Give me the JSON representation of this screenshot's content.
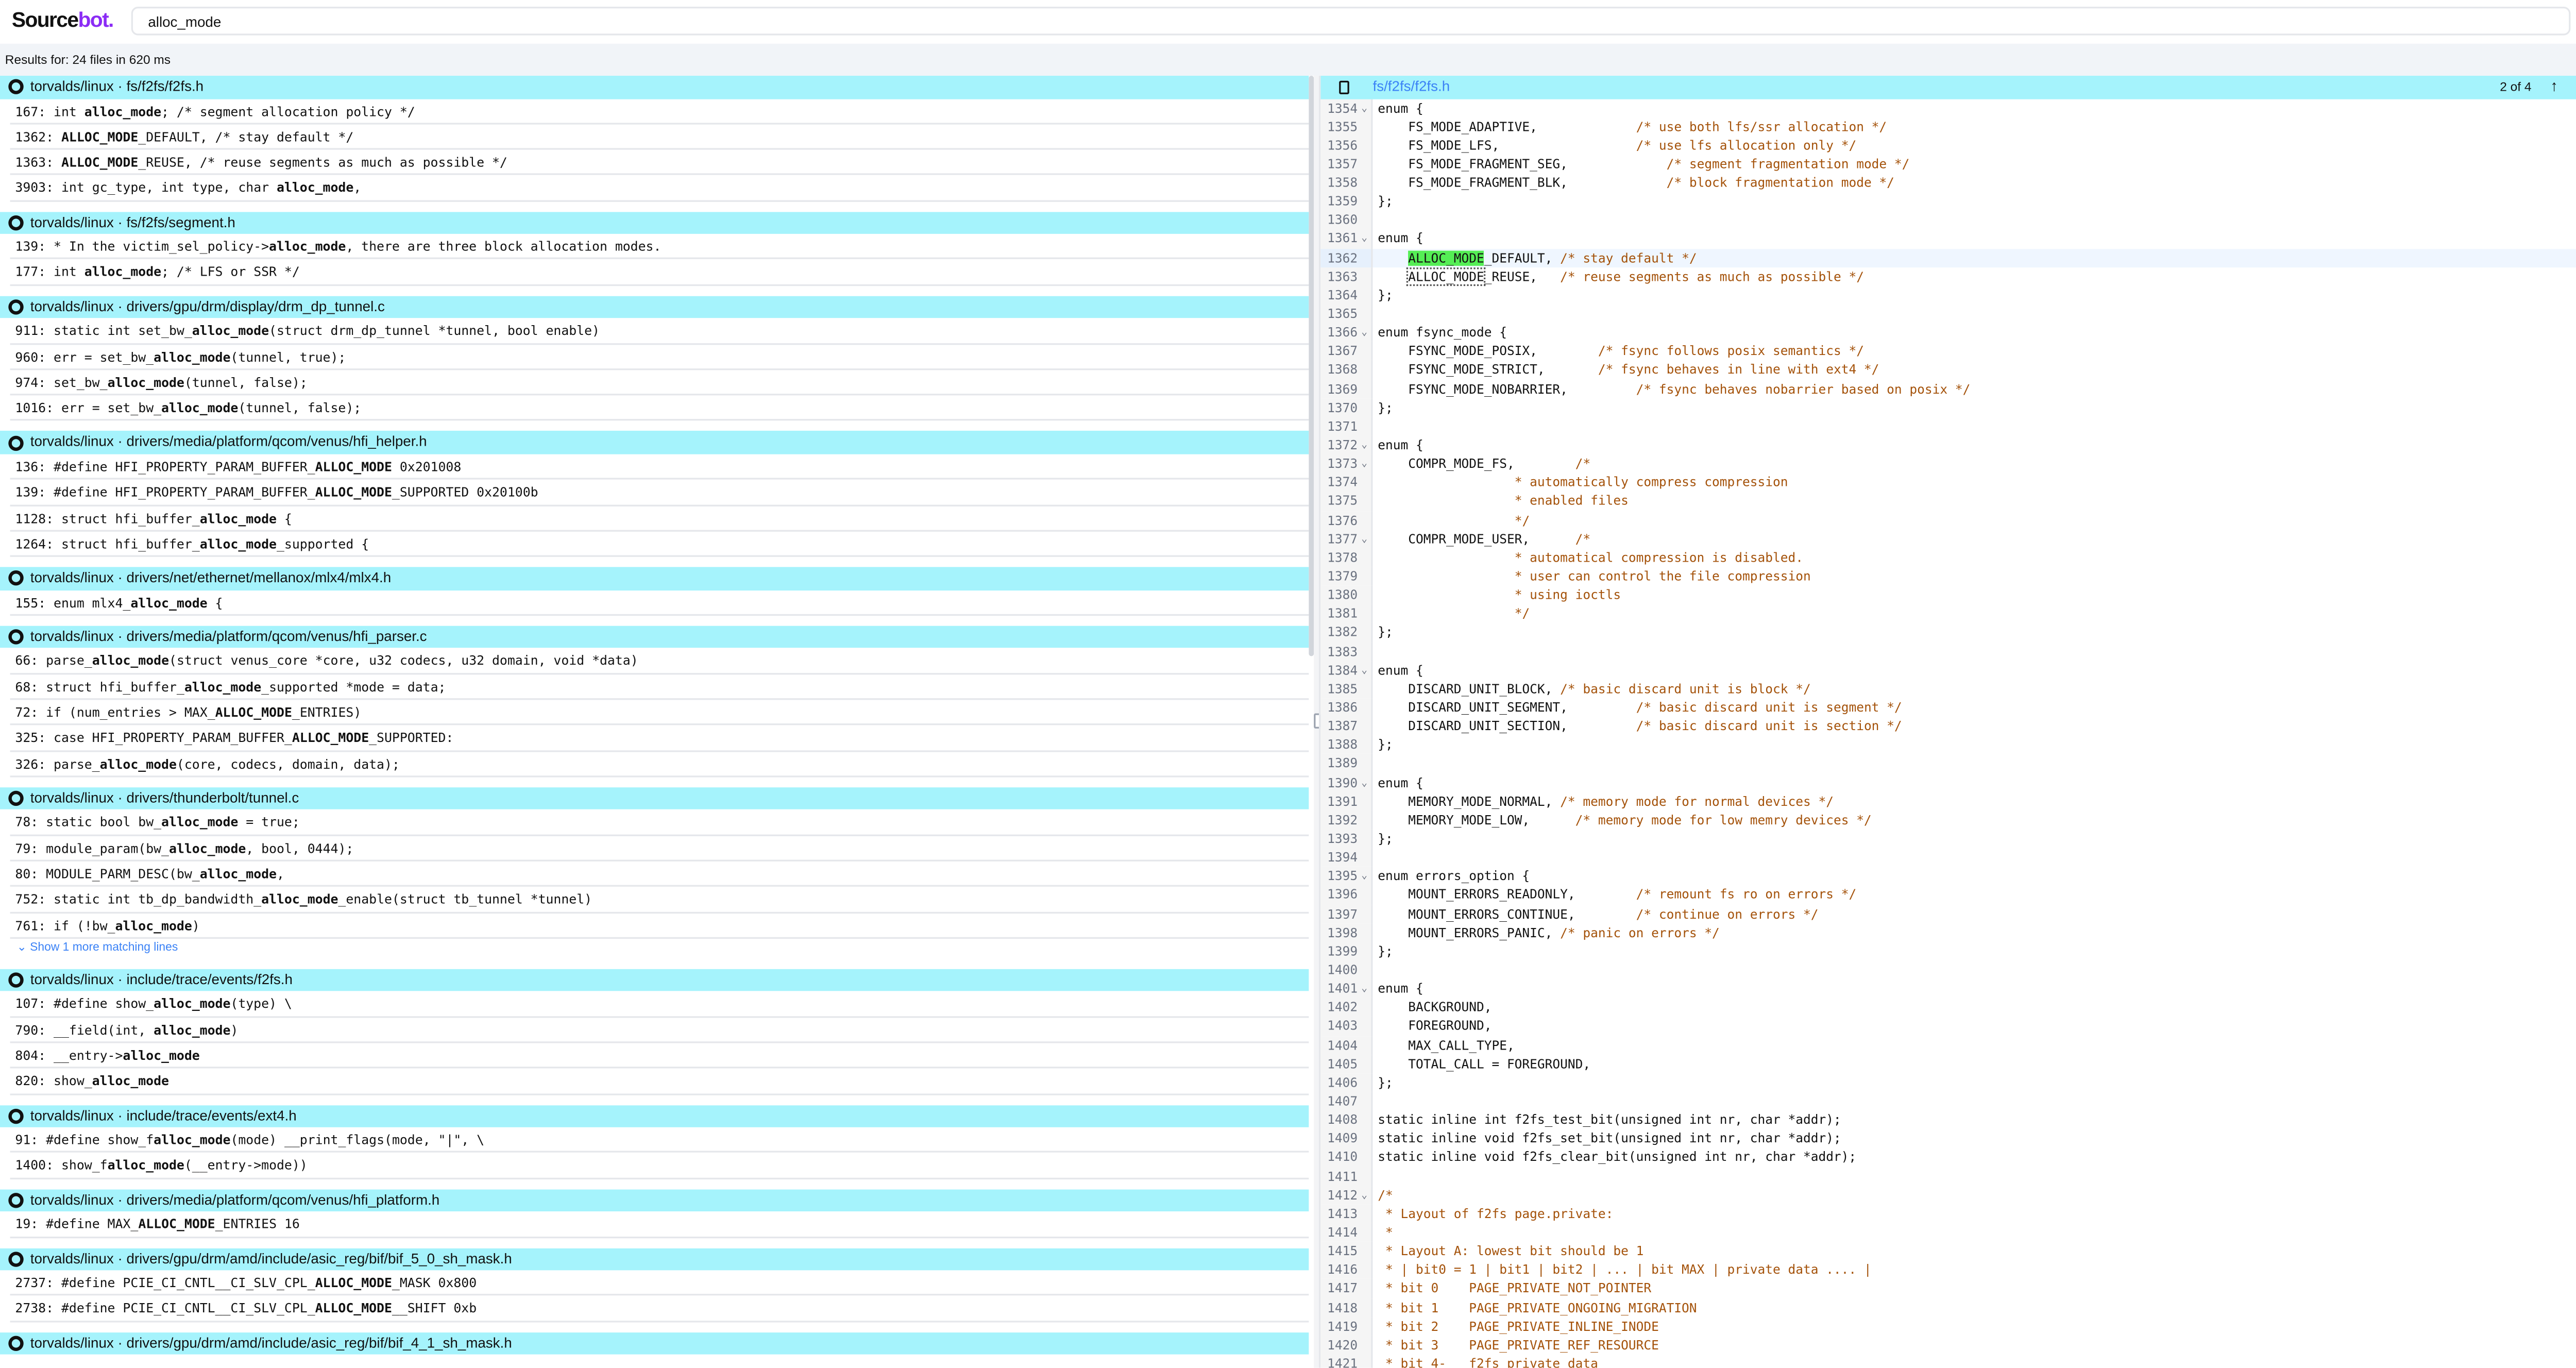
{
  "header": {
    "logo_a": "Source",
    "logo_b": "bot.",
    "search_value": "alloc_mode",
    "settings_icon": "gear-icon"
  },
  "results_summary": "Results for: 24 files in 620 ms",
  "colors": {
    "file_header": "#a5f3fc",
    "brand": "#8b2cf5",
    "match_highlight": "#55ee55",
    "comment": "#a4520a",
    "link": "#3b82f6"
  },
  "results": [
    {
      "repo": "torvalds/linux",
      "path": "fs/f2fs/f2fs.h",
      "lines": [
        {
          "n": "167",
          "pre": "int ",
          "match": "alloc_mode",
          "post": "; /* segment allocation policy */"
        },
        {
          "n": "1362",
          "pre": "",
          "match": "ALLOC_MODE",
          "post": "_DEFAULT, /* stay default */"
        },
        {
          "n": "1363",
          "pre": "",
          "match": "ALLOC_MODE",
          "post": "_REUSE, /* reuse segments as much as possible */"
        },
        {
          "n": "3903",
          "pre": "int gc_type, int type, char ",
          "match": "alloc_mode",
          "post": ","
        }
      ]
    },
    {
      "repo": "torvalds/linux",
      "path": "fs/f2fs/segment.h",
      "lines": [
        {
          "n": "139",
          "pre": "* In the victim_sel_policy->",
          "match": "alloc_mode",
          "post": ", there are three block allocation modes."
        },
        {
          "n": "177",
          "pre": "int ",
          "match": "alloc_mode",
          "post": "; /* LFS or SSR */"
        }
      ]
    },
    {
      "repo": "torvalds/linux",
      "path": "drivers/gpu/drm/display/drm_dp_tunnel.c",
      "lines": [
        {
          "n": "911",
          "pre": "static int set_bw_",
          "match": "alloc_mode",
          "post": "(struct drm_dp_tunnel *tunnel, bool enable)"
        },
        {
          "n": "960",
          "pre": "err = set_bw_",
          "match": "alloc_mode",
          "post": "(tunnel, true);"
        },
        {
          "n": "974",
          "pre": "set_bw_",
          "match": "alloc_mode",
          "post": "(tunnel, false);"
        },
        {
          "n": "1016",
          "pre": "err = set_bw_",
          "match": "alloc_mode",
          "post": "(tunnel, false);"
        }
      ]
    },
    {
      "repo": "torvalds/linux",
      "path": "drivers/media/platform/qcom/venus/hfi_helper.h",
      "lines": [
        {
          "n": "136",
          "pre": "#define HFI_PROPERTY_PARAM_BUFFER_",
          "match": "ALLOC_MODE",
          "post": " 0x201008"
        },
        {
          "n": "139",
          "pre": "#define HFI_PROPERTY_PARAM_BUFFER_",
          "match": "ALLOC_MODE",
          "post": "_SUPPORTED 0x20100b"
        },
        {
          "n": "1128",
          "pre": "struct hfi_buffer_",
          "match": "alloc_mode",
          "post": " {"
        },
        {
          "n": "1264",
          "pre": "struct hfi_buffer_",
          "match": "alloc_mode",
          "post": "_supported {"
        }
      ]
    },
    {
      "repo": "torvalds/linux",
      "path": "drivers/net/ethernet/mellanox/mlx4/mlx4.h",
      "lines": [
        {
          "n": "155",
          "pre": "enum mlx4_",
          "match": "alloc_mode",
          "post": " {"
        }
      ]
    },
    {
      "repo": "torvalds/linux",
      "path": "drivers/media/platform/qcom/venus/hfi_parser.c",
      "lines": [
        {
          "n": "66",
          "pre": "parse_",
          "match": "alloc_mode",
          "post": "(struct venus_core *core, u32 codecs, u32 domain, void *data)"
        },
        {
          "n": "68",
          "pre": "struct hfi_buffer_",
          "match": "alloc_mode",
          "post": "_supported *mode = data;"
        },
        {
          "n": "72",
          "pre": "if (num_entries > MAX_",
          "match": "ALLOC_MODE",
          "post": "_ENTRIES)"
        },
        {
          "n": "325",
          "pre": "case HFI_PROPERTY_PARAM_BUFFER_",
          "match": "ALLOC_MODE",
          "post": "_SUPPORTED:"
        },
        {
          "n": "326",
          "pre": "parse_",
          "match": "alloc_mode",
          "post": "(core, codecs, domain, data);"
        }
      ]
    },
    {
      "repo": "torvalds/linux",
      "path": "drivers/thunderbolt/tunnel.c",
      "more": "Show 1 more matching lines",
      "lines": [
        {
          "n": "78",
          "pre": "static bool bw_",
          "match": "alloc_mode",
          "post": " = true;"
        },
        {
          "n": "79",
          "pre": "module_param(bw_",
          "match": "alloc_mode",
          "post": ", bool, 0444);"
        },
        {
          "n": "80",
          "pre": "MODULE_PARM_DESC(bw_",
          "match": "alloc_mode",
          "post": ","
        },
        {
          "n": "752",
          "pre": "static int tb_dp_bandwidth_",
          "match": "alloc_mode",
          "post": "_enable(struct tb_tunnel *tunnel)"
        },
        {
          "n": "761",
          "pre": "if (!bw_",
          "match": "alloc_mode",
          "post": ")"
        }
      ]
    },
    {
      "repo": "torvalds/linux",
      "path": "include/trace/events/f2fs.h",
      "lines": [
        {
          "n": "107",
          "pre": "#define show_",
          "match": "alloc_mode",
          "post": "(type) \\"
        },
        {
          "n": "790",
          "pre": "__field(int, ",
          "match": "alloc_mode",
          "post": ")"
        },
        {
          "n": "804",
          "pre": "__entry->",
          "match": "alloc_mode",
          "post": ""
        },
        {
          "n": "820",
          "pre": "show_",
          "match": "alloc_mode",
          "post": ""
        }
      ]
    },
    {
      "repo": "torvalds/linux",
      "path": "include/trace/events/ext4.h",
      "lines": [
        {
          "n": "91",
          "pre": "#define show_f",
          "match": "alloc_mode",
          "post": "(mode) __print_flags(mode, \"|\", \\"
        },
        {
          "n": "1400",
          "pre": "show_f",
          "match": "alloc_mode",
          "post": "(__entry->mode))"
        }
      ]
    },
    {
      "repo": "torvalds/linux",
      "path": "drivers/media/platform/qcom/venus/hfi_platform.h",
      "lines": [
        {
          "n": "19",
          "pre": "#define MAX_",
          "match": "ALLOC_MODE",
          "post": "_ENTRIES 16"
        }
      ]
    },
    {
      "repo": "torvalds/linux",
      "path": "drivers/gpu/drm/amd/include/asic_reg/bif/bif_5_0_sh_mask.h",
      "lines": [
        {
          "n": "2737",
          "pre": "#define PCIE_CI_CNTL__CI_SLV_CPL_",
          "match": "ALLOC_MODE",
          "post": "_MASK 0x800"
        },
        {
          "n": "2738",
          "pre": "#define PCIE_CI_CNTL__CI_SLV_CPL_",
          "match": "ALLOC_MODE",
          "post": "__SHIFT 0xb"
        }
      ]
    },
    {
      "repo": "torvalds/linux",
      "path": "drivers/gpu/drm/amd/include/asic_reg/bif/bif_4_1_sh_mask.h",
      "lines": []
    }
  ],
  "preview": {
    "path": "fs/f2fs/f2fs.h",
    "match_counter": "2 of 4",
    "lines": [
      {
        "n": "1354",
        "fold": true,
        "code": "enum {",
        "comment": ""
      },
      {
        "n": "1355",
        "code": "    FS_MODE_ADAPTIVE,             ",
        "comment": "/* use both lfs/ssr allocation */"
      },
      {
        "n": "1356",
        "code": "    FS_MODE_LFS,                  ",
        "comment": "/* use lfs allocation only */"
      },
      {
        "n": "1357",
        "code": "    FS_MODE_FRAGMENT_SEG,             ",
        "comment": "/* segment fragmentation mode */"
      },
      {
        "n": "1358",
        "code": "    FS_MODE_FRAGMENT_BLK,             ",
        "comment": "/* block fragmentation mode */"
      },
      {
        "n": "1359",
        "code": "};",
        "comment": ""
      },
      {
        "n": "1360",
        "code": "",
        "comment": ""
      },
      {
        "n": "1361",
        "fold": true,
        "code": "enum {",
        "comment": ""
      },
      {
        "n": "1362",
        "current": true,
        "indent": "    ",
        "match": "ALLOC_MODE",
        "code": "_DEFAULT, ",
        "comment": "/* stay default */"
      },
      {
        "n": "1363",
        "outline": true,
        "indent": "    ",
        "match": "ALLOC_MODE",
        "code": "_REUSE,   ",
        "comment": "/* reuse segments as much as possible */"
      },
      {
        "n": "1364",
        "code": "};",
        "comment": ""
      },
      {
        "n": "1365",
        "code": "",
        "comment": ""
      },
      {
        "n": "1366",
        "fold": true,
        "code": "enum fsync_mode {",
        "comment": ""
      },
      {
        "n": "1367",
        "code": "    FSYNC_MODE_POSIX,        ",
        "comment": "/* fsync follows posix semantics */"
      },
      {
        "n": "1368",
        "code": "    FSYNC_MODE_STRICT,       ",
        "comment": "/* fsync behaves in line with ext4 */"
      },
      {
        "n": "1369",
        "code": "    FSYNC_MODE_NOBARRIER,         ",
        "comment": "/* fsync behaves nobarrier based on posix */"
      },
      {
        "n": "1370",
        "code": "};",
        "comment": ""
      },
      {
        "n": "1371",
        "code": "",
        "comment": ""
      },
      {
        "n": "1372",
        "fold": true,
        "code": "enum {",
        "comment": ""
      },
      {
        "n": "1373",
        "fold": true,
        "code": "    COMPR_MODE_FS,        ",
        "comment": "/*"
      },
      {
        "n": "1374",
        "code": "                  ",
        "comment": "* automatically compress compression"
      },
      {
        "n": "1375",
        "code": "                  ",
        "comment": "* enabled files"
      },
      {
        "n": "1376",
        "code": "                  ",
        "comment": "*/"
      },
      {
        "n": "1377",
        "fold": true,
        "code": "    COMPR_MODE_USER,      ",
        "comment": "/*"
      },
      {
        "n": "1378",
        "code": "                  ",
        "comment": "* automatical compression is disabled."
      },
      {
        "n": "1379",
        "code": "                  ",
        "comment": "* user can control the file compression"
      },
      {
        "n": "1380",
        "code": "                  ",
        "comment": "* using ioctls"
      },
      {
        "n": "1381",
        "code": "                  ",
        "comment": "*/"
      },
      {
        "n": "1382",
        "code": "};",
        "comment": ""
      },
      {
        "n": "1383",
        "code": "",
        "comment": ""
      },
      {
        "n": "1384",
        "fold": true,
        "code": "enum {",
        "comment": ""
      },
      {
        "n": "1385",
        "code": "    DISCARD_UNIT_BLOCK, ",
        "comment": "/* basic discard unit is block */"
      },
      {
        "n": "1386",
        "code": "    DISCARD_UNIT_SEGMENT,         ",
        "comment": "/* basic discard unit is segment */"
      },
      {
        "n": "1387",
        "code": "    DISCARD_UNIT_SECTION,         ",
        "comment": "/* basic discard unit is section */"
      },
      {
        "n": "1388",
        "code": "};",
        "comment": ""
      },
      {
        "n": "1389",
        "code": "",
        "comment": ""
      },
      {
        "n": "1390",
        "fold": true,
        "code": "enum {",
        "comment": ""
      },
      {
        "n": "1391",
        "code": "    MEMORY_MODE_NORMAL, ",
        "comment": "/* memory mode for normal devices */"
      },
      {
        "n": "1392",
        "code": "    MEMORY_MODE_LOW,      ",
        "comment": "/* memory mode for low memry devices */"
      },
      {
        "n": "1393",
        "code": "};",
        "comment": ""
      },
      {
        "n": "1394",
        "code": "",
        "comment": ""
      },
      {
        "n": "1395",
        "fold": true,
        "code": "enum errors_option {",
        "comment": ""
      },
      {
        "n": "1396",
        "code": "    MOUNT_ERRORS_READONLY,        ",
        "comment": "/* remount fs ro on errors */"
      },
      {
        "n": "1397",
        "code": "    MOUNT_ERRORS_CONTINUE,        ",
        "comment": "/* continue on errors */"
      },
      {
        "n": "1398",
        "code": "    MOUNT_ERRORS_PANIC, ",
        "comment": "/* panic on errors */"
      },
      {
        "n": "1399",
        "code": "};",
        "comment": ""
      },
      {
        "n": "1400",
        "code": "",
        "comment": ""
      },
      {
        "n": "1401",
        "fold": true,
        "code": "enum {",
        "comment": ""
      },
      {
        "n": "1402",
        "code": "    BACKGROUND,",
        "comment": ""
      },
      {
        "n": "1403",
        "code": "    FOREGROUND,",
        "comment": ""
      },
      {
        "n": "1404",
        "code": "    MAX_CALL_TYPE,",
        "comment": ""
      },
      {
        "n": "1405",
        "code": "    TOTAL_CALL = FOREGROUND,",
        "comment": ""
      },
      {
        "n": "1406",
        "code": "};",
        "comment": ""
      },
      {
        "n": "1407",
        "code": "",
        "comment": ""
      },
      {
        "n": "1408",
        "code": "static inline int f2fs_test_bit(unsigned int nr, char *addr);",
        "comment": ""
      },
      {
        "n": "1409",
        "code": "static inline void f2fs_set_bit(unsigned int nr, char *addr);",
        "comment": ""
      },
      {
        "n": "1410",
        "code": "static inline void f2fs_clear_bit(unsigned int nr, char *addr);",
        "comment": ""
      },
      {
        "n": "1411",
        "code": "",
        "comment": ""
      },
      {
        "n": "1412",
        "fold": true,
        "code": "",
        "comment": "/*"
      },
      {
        "n": "1413",
        "code": "",
        "comment": " * Layout of f2fs page.private:"
      },
      {
        "n": "1414",
        "code": "",
        "comment": " *"
      },
      {
        "n": "1415",
        "code": "",
        "comment": " * Layout A: lowest bit should be 1"
      },
      {
        "n": "1416",
        "code": "",
        "comment": " * | bit0 = 1 | bit1 | bit2 | ... | bit MAX | private data .... |"
      },
      {
        "n": "1417",
        "code": "",
        "comment": " * bit 0    PAGE_PRIVATE_NOT_POINTER"
      },
      {
        "n": "1418",
        "code": "",
        "comment": " * bit 1    PAGE_PRIVATE_ONGOING_MIGRATION"
      },
      {
        "n": "1419",
        "code": "",
        "comment": " * bit 2    PAGE_PRIVATE_INLINE_INODE"
      },
      {
        "n": "1420",
        "code": "",
        "comment": " * bit 3    PAGE_PRIVATE_REF_RESOURCE"
      },
      {
        "n": "1421",
        "code": "",
        "comment": " * bit 4-   f2fs private data"
      }
    ]
  }
}
